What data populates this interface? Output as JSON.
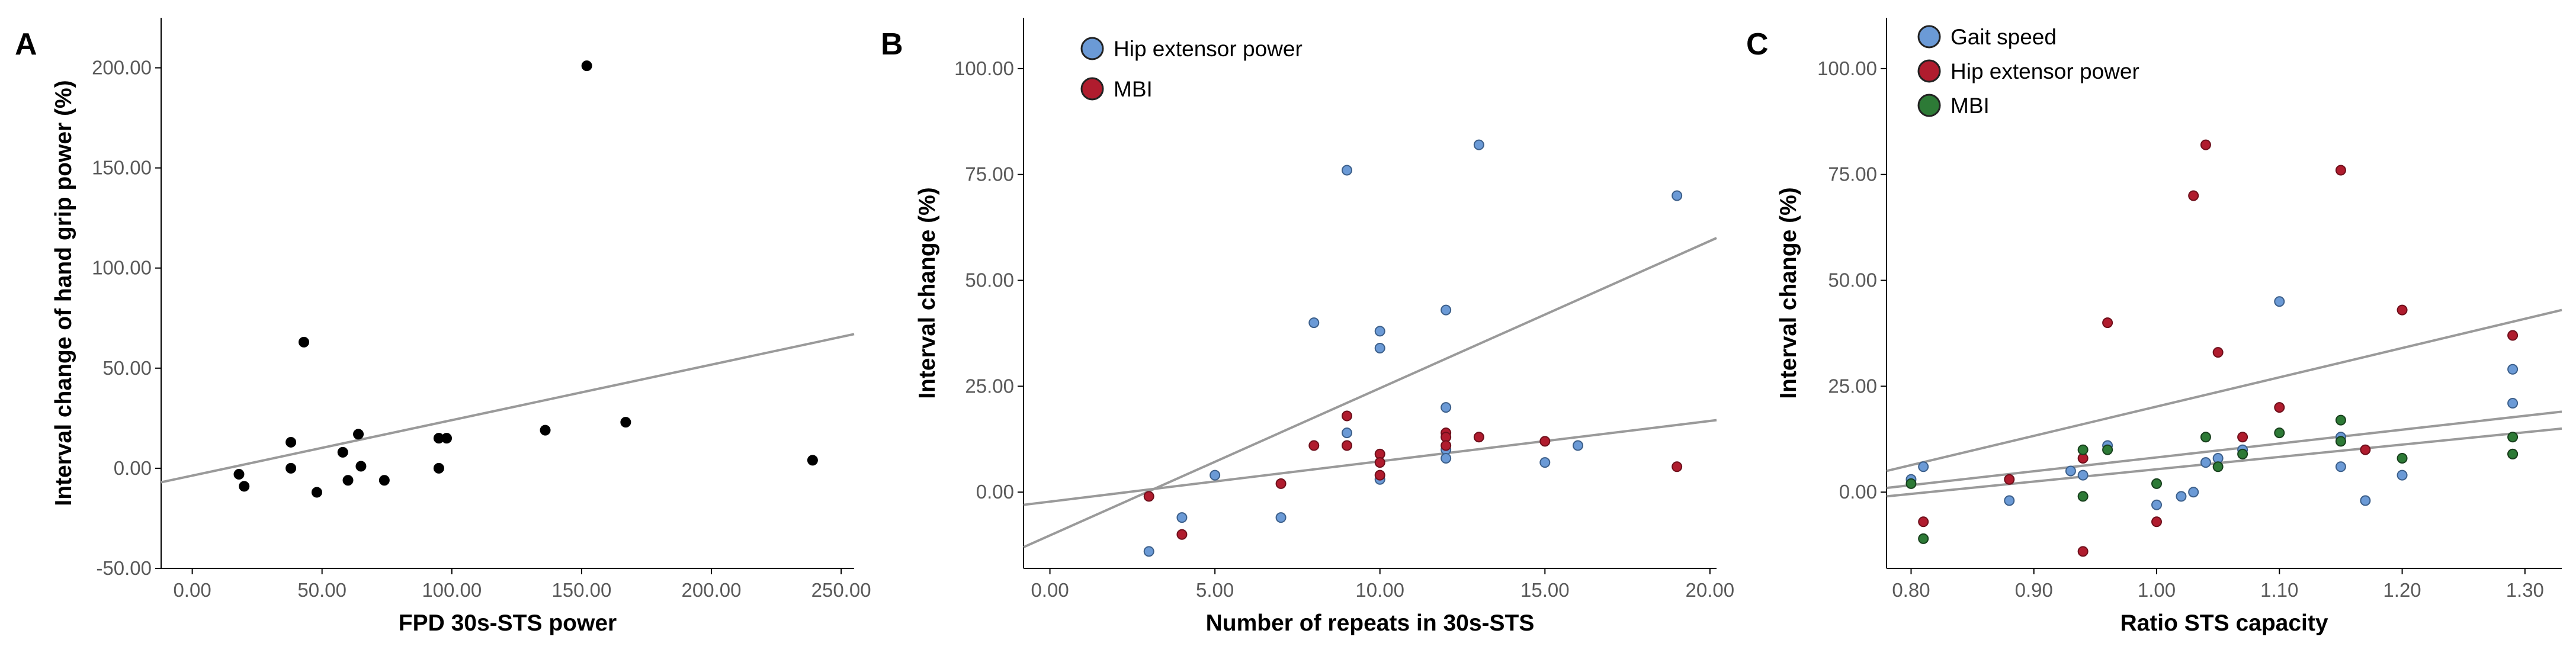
{
  "chart_data": [
    {
      "type": "scatter",
      "panel": "A",
      "xlabel": "FPD 30s-STS power",
      "ylabel": "Interval change of hand grip power (%)",
      "xlim": [
        -12,
        255
      ],
      "ylim": [
        -50,
        225
      ],
      "xticks": [
        0,
        50,
        100,
        150,
        200,
        250
      ],
      "xtick_labels": [
        "0.00",
        "50.00",
        "100.00",
        "150.00",
        "200.00",
        "250.00"
      ],
      "yticks": [
        -50,
        0,
        50,
        100,
        150,
        200
      ],
      "ytick_labels": [
        "-50.00",
        "0.00",
        "50.00",
        "100.00",
        "150.00",
        "200.00"
      ],
      "legend": [],
      "series": [
        {
          "name": "Hand grip power",
          "color": "#000000",
          "stroke": "#000000",
          "points": [
            [
              18,
              -3
            ],
            [
              20,
              -9
            ],
            [
              38,
              13
            ],
            [
              38,
              0
            ],
            [
              43,
              63
            ],
            [
              48,
              -12
            ],
            [
              58,
              8
            ],
            [
              60,
              -6
            ],
            [
              64,
              17
            ],
            [
              65,
              1
            ],
            [
              74,
              -6
            ],
            [
              95,
              15
            ],
            [
              95,
              0
            ],
            [
              98,
              15
            ],
            [
              136,
              19
            ],
            [
              152,
              201
            ],
            [
              167,
              23
            ],
            [
              239,
              4
            ]
          ],
          "fit": [
            -12,
            255,
            -7,
            67
          ]
        }
      ]
    },
    {
      "type": "scatter",
      "panel": "B",
      "xlabel": "Number of repeats in 30s-STS",
      "ylabel": "Interval change (%)",
      "xlim": [
        -0.8,
        20.2
      ],
      "ylim": [
        -18,
        112
      ],
      "xticks": [
        0,
        5,
        10,
        15,
        20
      ],
      "xtick_labels": [
        "0.00",
        "5.00",
        "10.00",
        "15.00",
        "20.00"
      ],
      "yticks": [
        0,
        25,
        50,
        75,
        100
      ],
      "ytick_labels": [
        "0.00",
        "25.00",
        "50.00",
        "75.00",
        "100.00"
      ],
      "legend": [
        "Hip extensor power",
        "MBI"
      ],
      "series": [
        {
          "name": "Hip extensor power",
          "color": "#6b9ad6",
          "stroke": "#3c5f8a",
          "points": [
            [
              3,
              -14
            ],
            [
              4,
              -6
            ],
            [
              5,
              4
            ],
            [
              7,
              -6
            ],
            [
              8,
              40
            ],
            [
              9,
              14
            ],
            [
              9,
              76
            ],
            [
              10,
              38
            ],
            [
              10,
              34
            ],
            [
              10,
              3
            ],
            [
              12,
              43
            ],
            [
              12,
              20
            ],
            [
              12,
              10
            ],
            [
              12,
              8
            ],
            [
              13,
              82
            ],
            [
              15,
              7
            ],
            [
              16,
              11
            ],
            [
              19,
              70
            ]
          ],
          "fit": [
            -0.8,
            20.2,
            -13,
            60
          ]
        },
        {
          "name": "MBI",
          "color": "#b01c2e",
          "stroke": "#6e0f1b",
          "points": [
            [
              3,
              -1
            ],
            [
              4,
              -10
            ],
            [
              7,
              2
            ],
            [
              8,
              11
            ],
            [
              9,
              11
            ],
            [
              9,
              18
            ],
            [
              10,
              9
            ],
            [
              10,
              7
            ],
            [
              10,
              4
            ],
            [
              12,
              14
            ],
            [
              12,
              13
            ],
            [
              12,
              11
            ],
            [
              13,
              13
            ],
            [
              15,
              12
            ],
            [
              19,
              6
            ]
          ],
          "fit": [
            -0.8,
            20.2,
            -3,
            17
          ]
        }
      ]
    },
    {
      "type": "scatter",
      "panel": "C",
      "xlabel": "Ratio STS capacity",
      "ylabel": "Interval change (%)",
      "xlim": [
        0.78,
        1.33
      ],
      "ylim": [
        -18,
        112
      ],
      "xticks": [
        0.8,
        0.9,
        1.0,
        1.1,
        1.2,
        1.3
      ],
      "xtick_labels": [
        "0.80",
        "0.90",
        "1.00",
        "1.10",
        "1.20",
        "1.30"
      ],
      "yticks": [
        0,
        25,
        50,
        75,
        100
      ],
      "ytick_labels": [
        "0.00",
        "25.00",
        "50.00",
        "75.00",
        "100.00"
      ],
      "legend": [
        "Gait speed",
        "Hip extensor power",
        "MBI"
      ],
      "series": [
        {
          "name": "Gait speed",
          "color": "#6b9ad6",
          "stroke": "#3c5f8a",
          "points": [
            [
              0.8,
              3
            ],
            [
              0.81,
              6
            ],
            [
              0.88,
              -2
            ],
            [
              0.93,
              5
            ],
            [
              0.94,
              4
            ],
            [
              0.96,
              11
            ],
            [
              1.0,
              -3
            ],
            [
              1.02,
              -1
            ],
            [
              1.03,
              0
            ],
            [
              1.04,
              7
            ],
            [
              1.05,
              8
            ],
            [
              1.07,
              10
            ],
            [
              1.1,
              45
            ],
            [
              1.15,
              13
            ],
            [
              1.15,
              6
            ],
            [
              1.17,
              -2
            ],
            [
              1.2,
              4
            ],
            [
              1.29,
              29
            ],
            [
              1.29,
              21
            ]
          ],
          "fit": [
            0.78,
            1.33,
            1,
            19
          ]
        },
        {
          "name": "Hip extensor power",
          "color": "#b01c2e",
          "stroke": "#6e0f1b",
          "points": [
            [
              0.81,
              -7
            ],
            [
              0.88,
              3
            ],
            [
              0.94,
              8
            ],
            [
              0.94,
              -14
            ],
            [
              0.96,
              40
            ],
            [
              1.0,
              -7
            ],
            [
              1.03,
              70
            ],
            [
              1.04,
              82
            ],
            [
              1.05,
              33
            ],
            [
              1.07,
              13
            ],
            [
              1.1,
              20
            ],
            [
              1.15,
              76
            ],
            [
              1.17,
              10
            ],
            [
              1.2,
              43
            ],
            [
              1.29,
              37
            ],
            [
              1.29,
              9
            ]
          ],
          "fit": [
            0.78,
            1.33,
            5,
            43
          ]
        },
        {
          "name": "MBI",
          "color": "#2d7a36",
          "stroke": "#173f1c",
          "points": [
            [
              0.8,
              2
            ],
            [
              0.81,
              -11
            ],
            [
              0.94,
              10
            ],
            [
              0.94,
              -1
            ],
            [
              0.96,
              10
            ],
            [
              1.0,
              2
            ],
            [
              1.04,
              13
            ],
            [
              1.05,
              6
            ],
            [
              1.07,
              9
            ],
            [
              1.1,
              14
            ],
            [
              1.15,
              17
            ],
            [
              1.15,
              12
            ],
            [
              1.2,
              8
            ],
            [
              1.29,
              13
            ],
            [
              1.29,
              9
            ]
          ],
          "fit": [
            0.78,
            1.33,
            -1,
            15
          ]
        }
      ]
    }
  ]
}
